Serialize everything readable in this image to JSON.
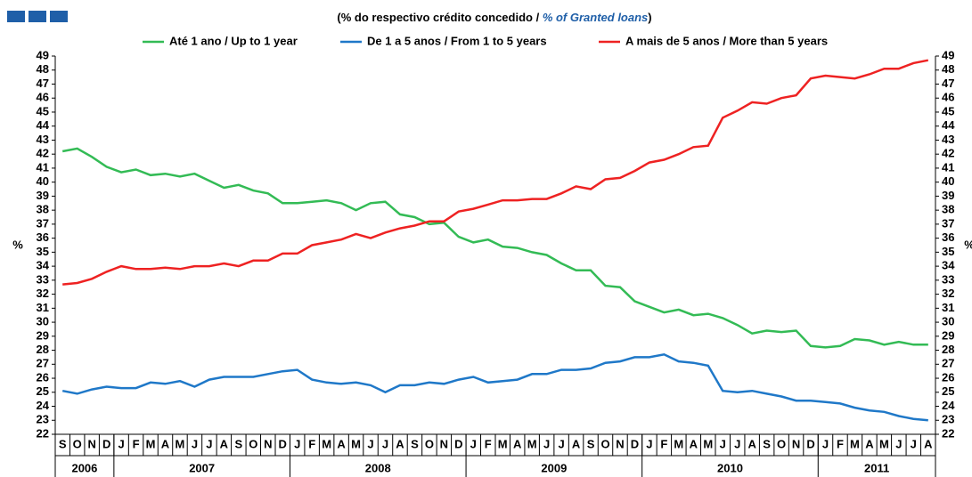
{
  "chart_data": {
    "type": "line",
    "title_prefix": "(% do respectivo crédito concedido / ",
    "title_en": "% of Granted loans",
    "title_suffix": ")",
    "ylabel": "%",
    "years": [
      {
        "label": "2006",
        "categories": [
          "S",
          "O",
          "N",
          "D"
        ]
      },
      {
        "label": "2007",
        "categories": [
          "J",
          "F",
          "M",
          "A",
          "M",
          "J",
          "J",
          "A",
          "S",
          "O",
          "N",
          "D"
        ]
      },
      {
        "label": "2008",
        "categories": [
          "J",
          "F",
          "M",
          "A",
          "M",
          "J",
          "J",
          "A",
          "S",
          "O",
          "N",
          "D"
        ]
      },
      {
        "label": "2009",
        "categories": [
          "J",
          "F",
          "M",
          "A",
          "M",
          "J",
          "J",
          "A",
          "S",
          "O",
          "N",
          "D"
        ]
      },
      {
        "label": "2010",
        "categories": [
          "J",
          "F",
          "M",
          "A",
          "M",
          "J",
          "J",
          "A",
          "S",
          "O",
          "N",
          "D"
        ]
      },
      {
        "label": "2011",
        "categories": [
          "J",
          "F",
          "M",
          "A",
          "M",
          "J",
          "J",
          "A"
        ]
      }
    ],
    "series": [
      {
        "name": "Até 1 ano / Up to 1 year",
        "color": "#33bb55",
        "values": [
          42.2,
          42.4,
          41.8,
          41.1,
          40.7,
          40.9,
          40.5,
          40.6,
          40.4,
          40.6,
          40.1,
          39.6,
          39.8,
          39.4,
          39.2,
          38.5,
          38.5,
          38.6,
          38.7,
          38.5,
          38.0,
          38.5,
          38.6,
          37.7,
          37.5,
          37.0,
          37.1,
          36.1,
          35.7,
          35.9,
          35.4,
          35.3,
          35.0,
          34.8,
          34.2,
          33.7,
          33.7,
          32.6,
          32.5,
          31.5,
          31.1,
          30.7,
          30.9,
          30.5,
          30.6,
          30.3,
          29.8,
          29.2,
          29.4,
          29.3,
          29.4,
          28.3,
          28.2,
          28.3,
          28.8,
          28.7,
          28.4,
          28.6,
          28.4,
          28.4
        ]
      },
      {
        "name": "De 1 a 5 anos / From 1 to 5 years",
        "color": "#1f78c8",
        "values": [
          25.1,
          24.9,
          25.2,
          25.4,
          25.3,
          25.3,
          25.7,
          25.6,
          25.8,
          25.4,
          25.9,
          26.1,
          26.1,
          26.1,
          26.3,
          26.5,
          26.6,
          25.9,
          25.7,
          25.6,
          25.7,
          25.5,
          25.0,
          25.5,
          25.5,
          25.7,
          25.6,
          25.9,
          26.1,
          25.7,
          25.8,
          25.9,
          26.3,
          26.3,
          26.6,
          26.6,
          26.7,
          27.1,
          27.2,
          27.5,
          27.5,
          27.7,
          27.2,
          27.1,
          26.9,
          25.1,
          25.0,
          25.1,
          24.9,
          24.7,
          24.4,
          24.4,
          24.3,
          24.2,
          23.9,
          23.7,
          23.6,
          23.3,
          23.1,
          23.0
        ]
      },
      {
        "name": "A mais de 5 anos / More than 5 years",
        "color": "#ee2222",
        "values": [
          32.7,
          32.8,
          33.1,
          33.6,
          34.0,
          33.8,
          33.8,
          33.9,
          33.8,
          34.0,
          34.0,
          34.2,
          34.0,
          34.4,
          34.4,
          34.9,
          34.9,
          35.5,
          35.7,
          35.9,
          36.3,
          36.0,
          36.4,
          36.7,
          36.9,
          37.2,
          37.2,
          37.9,
          38.1,
          38.4,
          38.7,
          38.7,
          38.8,
          38.8,
          39.2,
          39.7,
          39.5,
          40.2,
          40.3,
          40.8,
          41.4,
          41.6,
          42.0,
          42.5,
          42.6,
          44.6,
          45.1,
          45.7,
          45.6,
          46.0,
          46.2,
          47.4,
          47.6,
          47.5,
          47.4,
          47.7,
          48.1,
          48.1,
          48.5,
          48.7
        ]
      }
    ],
    "ylim": [
      22,
      49
    ],
    "yticks": [
      22,
      23,
      24,
      25,
      26,
      27,
      28,
      29,
      30,
      31,
      32,
      33,
      34,
      35,
      36,
      37,
      38,
      39,
      40,
      41,
      42,
      43,
      44,
      45,
      46,
      47,
      48,
      49
    ]
  }
}
